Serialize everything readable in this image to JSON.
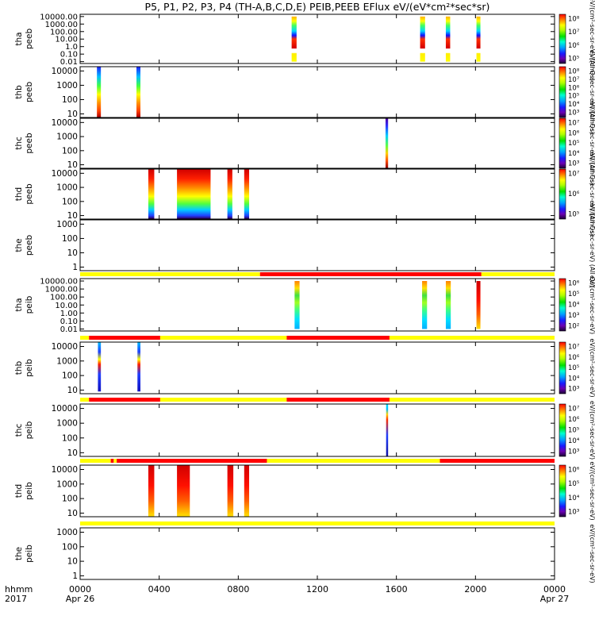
{
  "title": "P5, P1, P2, P3, P4 (TH-A,B,C,D,E) PEIB,PEEB EFlux eV/(eV*cm²*sec*sr)",
  "colors": {
    "flag_yellow": "#ffff00",
    "flag_red": "#ff0000"
  },
  "chart_data": {
    "type": "heatmap",
    "x_axis": {
      "label_top": "hhmm",
      "label_bottom": "2017",
      "range_hours": [
        0,
        24
      ],
      "ticks": [
        {
          "hour": 0,
          "label": "0000",
          "sublabel": "Apr 26"
        },
        {
          "hour": 4,
          "label": "0400",
          "sublabel": ""
        },
        {
          "hour": 8,
          "label": "0800",
          "sublabel": ""
        },
        {
          "hour": 12,
          "label": "1200",
          "sublabel": ""
        },
        {
          "hour": 16,
          "label": "1600",
          "sublabel": ""
        },
        {
          "hour": 20,
          "label": "2000",
          "sublabel": ""
        },
        {
          "hour": 24,
          "label": "0000",
          "sublabel": "Apr 27"
        }
      ]
    },
    "panels": [
      {
        "probe": "tha",
        "species": "peeb",
        "y_ticks": [
          "10000.00",
          "1000.00",
          "100.00",
          "10.00",
          "1.0",
          "0.10",
          "0.01"
        ],
        "cbar_ticks": [
          "10⁸",
          "10⁷",
          "10⁶",
          "10⁵"
        ],
        "cbar_label": "eV/(cm²-sec-sr-eV) (All Qs)",
        "bursts": [
          {
            "start": 10.7,
            "end": 10.95,
            "e_min": 0.01,
            "e_max": 10000,
            "style": "ramp_wide"
          },
          {
            "start": 17.2,
            "end": 17.45,
            "e_min": 0.01,
            "e_max": 10000,
            "style": "ramp_wide"
          },
          {
            "start": 18.5,
            "end": 18.72,
            "e_min": 0.01,
            "e_max": 10000,
            "style": "ramp_wide"
          },
          {
            "start": 20.05,
            "end": 20.25,
            "e_min": 0.01,
            "e_max": 10000,
            "style": "ramp_wide"
          }
        ]
      },
      {
        "probe": "thb",
        "species": "peeb",
        "y_ticks": [
          "10000",
          "1000",
          "100",
          "10"
        ],
        "cbar_ticks": [
          "10⁸",
          "10⁷",
          "10⁶",
          "10⁵",
          "10⁴",
          "10³"
        ],
        "cbar_label": "eV/(cm²-sec-sr-eV) (All Qs)",
        "bursts": [
          {
            "start": 0.85,
            "end": 1.05,
            "e_min": 6,
            "e_max": 30000,
            "style": "ramp"
          },
          {
            "start": 2.85,
            "end": 3.05,
            "e_min": 6,
            "e_max": 30000,
            "style": "ramp"
          }
        ]
      },
      {
        "probe": "thc",
        "species": "peeb",
        "y_ticks": [
          "10000",
          "1000",
          "100",
          "10"
        ],
        "cbar_ticks": [
          "10⁷",
          "10⁶",
          "10⁵",
          "10⁴",
          "10³"
        ],
        "cbar_label": "eV/(cm²-sec-sr-eV) (All Qs)",
        "bursts": [
          {
            "start": 15.45,
            "end": 15.58,
            "e_min": 5,
            "e_max": 30000,
            "style": "narrow"
          }
        ]
      },
      {
        "probe": "thd",
        "species": "peeb",
        "y_ticks": [
          "10000",
          "1000",
          "100",
          "10"
        ],
        "cbar_ticks": [
          "10⁷",
          "10⁶",
          "10⁵"
        ],
        "cbar_label": "eV/(cm²-sec-sr-eV) (All Qs)",
        "bursts": [
          {
            "start": 3.45,
            "end": 3.75,
            "e_min": 6,
            "e_max": 30000,
            "style": "ramp_hot"
          },
          {
            "start": 4.9,
            "end": 6.6,
            "e_min": 6,
            "e_max": 30000,
            "style": "ramp_hot"
          },
          {
            "start": 7.45,
            "end": 7.7,
            "e_min": 6,
            "e_max": 30000,
            "style": "ramp_hot"
          },
          {
            "start": 8.3,
            "end": 8.55,
            "e_min": 6,
            "e_max": 30000,
            "style": "ramp_hot"
          }
        ]
      },
      {
        "probe": "the",
        "species": "peeb",
        "y_ticks": [
          "1000",
          "100",
          "10",
          "1"
        ],
        "cbar_ticks": [],
        "cbar_label": "eV/(cm²-sec-sr-eV) (All Qs)",
        "bursts": []
      },
      {
        "probe": "tha",
        "species": "peib",
        "y_ticks": [
          "10000.00",
          "1000.00",
          "100.00",
          "10.00",
          "1.00",
          "0.10",
          "0.01"
        ],
        "cbar_ticks": [
          "10⁶",
          "10⁵",
          "10⁴",
          "10³",
          "10²"
        ],
        "cbar_label": "eV/(cm²-sec-sr-eV)",
        "flag_segments": [
          {
            "start": 0,
            "end": 9.1,
            "color": "yellow"
          },
          {
            "start": 9.1,
            "end": 20.3,
            "color": "red"
          },
          {
            "start": 20.3,
            "end": 24,
            "color": "yellow"
          }
        ],
        "bursts": [
          {
            "start": 10.85,
            "end": 11.1,
            "e_min": 0.01,
            "e_max": 10000,
            "style": "ion"
          },
          {
            "start": 17.3,
            "end": 17.55,
            "e_min": 0.01,
            "e_max": 10000,
            "style": "ion"
          },
          {
            "start": 18.5,
            "end": 18.75,
            "e_min": 0.01,
            "e_max": 10000,
            "style": "ion"
          },
          {
            "start": 20.05,
            "end": 20.25,
            "e_min": 0.01,
            "e_max": 10000,
            "style": "ion_hot"
          }
        ]
      },
      {
        "probe": "thb",
        "species": "peib",
        "y_ticks": [
          "10000",
          "1000",
          "100",
          "10"
        ],
        "cbar_ticks": [
          "10⁷",
          "10⁶",
          "10⁵",
          "10⁴",
          "10³"
        ],
        "cbar_label": "eV/(cm²-sec-sr-eV)",
        "flag_segments": [
          {
            "start": 0,
            "end": 0.45,
            "color": "yellow"
          },
          {
            "start": 0.45,
            "end": 4.05,
            "color": "red"
          },
          {
            "start": 4.05,
            "end": 10.45,
            "color": "yellow"
          },
          {
            "start": 10.45,
            "end": 15.65,
            "color": "red"
          },
          {
            "start": 15.65,
            "end": 24,
            "color": "yellow"
          }
        ],
        "bursts": [
          {
            "start": 0.9,
            "end": 1.05,
            "e_min": 8,
            "e_max": 30000,
            "style": "ion_thin"
          },
          {
            "start": 2.9,
            "end": 3.05,
            "e_min": 8,
            "e_max": 30000,
            "style": "ion_thin"
          }
        ]
      },
      {
        "probe": "thc",
        "species": "peib",
        "y_ticks": [
          "10000",
          "1000",
          "100",
          "10"
        ],
        "cbar_ticks": [
          "10⁷",
          "10⁶",
          "10⁵",
          "10⁴",
          "10³"
        ],
        "cbar_label": "eV/(cm²-sec-sr-eV)",
        "flag_segments": [
          {
            "start": 0,
            "end": 0.45,
            "color": "yellow"
          },
          {
            "start": 0.45,
            "end": 4.05,
            "color": "red"
          },
          {
            "start": 4.05,
            "end": 10.45,
            "color": "yellow"
          },
          {
            "start": 10.45,
            "end": 15.65,
            "color": "red"
          },
          {
            "start": 15.65,
            "end": 24,
            "color": "yellow"
          }
        ],
        "bursts": [
          {
            "start": 15.48,
            "end": 15.58,
            "e_min": 5,
            "e_max": 30000,
            "style": "narrow_ion"
          }
        ]
      },
      {
        "probe": "thd",
        "species": "peib",
        "y_ticks": [
          "10000",
          "1000",
          "100",
          "10"
        ],
        "cbar_ticks": [
          "10⁶",
          "10⁵",
          "10⁴",
          "10³"
        ],
        "cbar_label": "eV/(cm²-sec-sr-eV)",
        "flag_segments": [
          {
            "start": 0,
            "end": 1.55,
            "color": "yellow"
          },
          {
            "start": 1.55,
            "end": 1.7,
            "color": "red"
          },
          {
            "start": 1.7,
            "end": 1.85,
            "color": "yellow"
          },
          {
            "start": 1.85,
            "end": 9.45,
            "color": "red"
          },
          {
            "start": 9.45,
            "end": 18.2,
            "color": "yellow"
          },
          {
            "start": 18.2,
            "end": 24,
            "color": "red"
          }
        ],
        "bursts": [
          {
            "start": 3.45,
            "end": 3.75,
            "e_min": 6,
            "e_max": 30000,
            "style": "ion_hot"
          },
          {
            "start": 4.9,
            "end": 5.55,
            "e_min": 6,
            "e_max": 30000,
            "style": "ion_hot"
          },
          {
            "start": 7.45,
            "end": 7.75,
            "e_min": 6,
            "e_max": 30000,
            "style": "ion_hot"
          },
          {
            "start": 8.3,
            "end": 8.55,
            "e_min": 6,
            "e_max": 30000,
            "style": "ion_hot"
          }
        ]
      },
      {
        "probe": "the",
        "species": "peib",
        "y_ticks": [
          "1000",
          "100",
          "10",
          "1"
        ],
        "cbar_ticks": [],
        "cbar_label": "eV/(cm²-sec-sr-eV)",
        "flag_segments": [
          {
            "start": 0,
            "end": 24,
            "color": "yellow"
          }
        ],
        "bursts": []
      }
    ]
  }
}
